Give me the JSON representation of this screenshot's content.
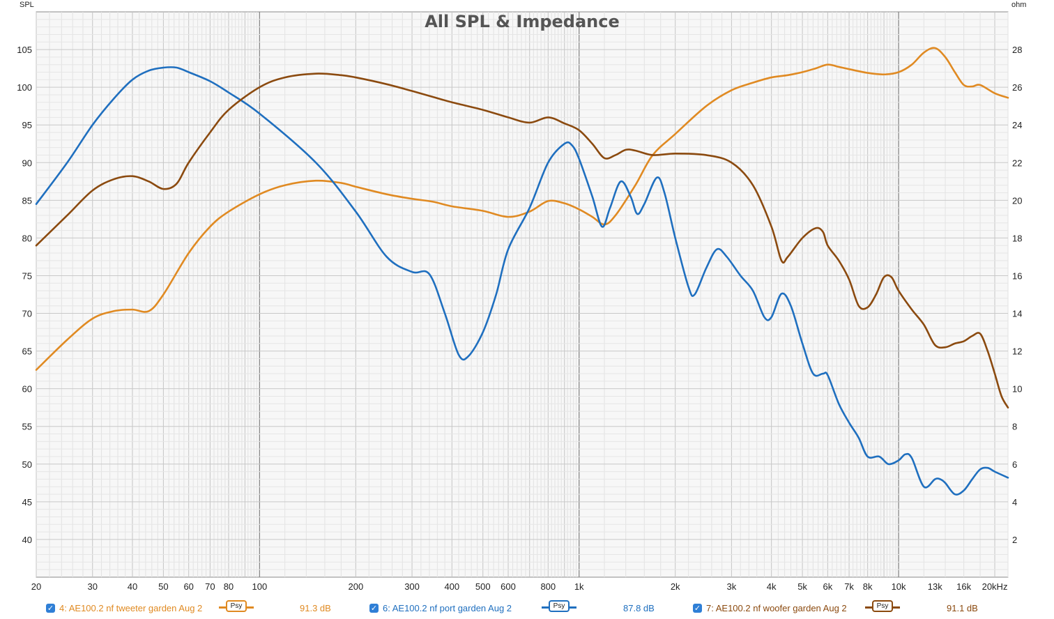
{
  "chart_data": {
    "type": "line",
    "title": "All SPL & Impedance",
    "ylabel": "SPL",
    "y2label": "ohm",
    "x_scale": "log",
    "xlim": [
      20,
      22000
    ],
    "ylim": [
      35,
      110
    ],
    "y2lim": [
      0,
      30
    ],
    "grid": true,
    "x_ticks": [
      {
        "value": 20,
        "label": "20"
      },
      {
        "value": 30,
        "label": "30"
      },
      {
        "value": 40,
        "label": "40"
      },
      {
        "value": 50,
        "label": "50"
      },
      {
        "value": 60,
        "label": "60"
      },
      {
        "value": 70,
        "label": "70"
      },
      {
        "value": 80,
        "label": "80"
      },
      {
        "value": 100,
        "label": "100"
      },
      {
        "value": 200,
        "label": "200"
      },
      {
        "value": 300,
        "label": "300"
      },
      {
        "value": 400,
        "label": "400"
      },
      {
        "value": 500,
        "label": "500"
      },
      {
        "value": 600,
        "label": "600"
      },
      {
        "value": 800,
        "label": "800"
      },
      {
        "value": 1000,
        "label": "1k"
      },
      {
        "value": 2000,
        "label": "2k"
      },
      {
        "value": 3000,
        "label": "3k"
      },
      {
        "value": 4000,
        "label": "4k"
      },
      {
        "value": 5000,
        "label": "5k"
      },
      {
        "value": 6000,
        "label": "6k"
      },
      {
        "value": 7000,
        "label": "7k"
      },
      {
        "value": 8000,
        "label": "8k"
      },
      {
        "value": 10000,
        "label": "10k"
      },
      {
        "value": 13000,
        "label": "13k"
      },
      {
        "value": 16000,
        "label": "16k"
      },
      {
        "value": 20000,
        "label": "20kHz"
      }
    ],
    "y_ticks": [
      40,
      45,
      50,
      55,
      60,
      65,
      70,
      75,
      80,
      85,
      90,
      95,
      100,
      105
    ],
    "y2_ticks": [
      2,
      4,
      6,
      8,
      10,
      12,
      14,
      16,
      18,
      20,
      22,
      24,
      26,
      28
    ],
    "series": [
      {
        "name": "4: AE100.2 nf tweeter garden Aug 2",
        "legend_value": "91.3 dB",
        "color": "#e08a22",
        "points": [
          [
            20,
            62.5
          ],
          [
            25,
            66.5
          ],
          [
            30,
            69.3
          ],
          [
            35,
            70.3
          ],
          [
            40,
            70.5
          ],
          [
            45,
            70.3
          ],
          [
            50,
            72.5
          ],
          [
            60,
            78
          ],
          [
            70,
            81.5
          ],
          [
            80,
            83.5
          ],
          [
            100,
            85.8
          ],
          [
            120,
            87
          ],
          [
            150,
            87.6
          ],
          [
            180,
            87.3
          ],
          [
            200,
            86.8
          ],
          [
            250,
            85.8
          ],
          [
            300,
            85.2
          ],
          [
            350,
            84.8
          ],
          [
            400,
            84.2
          ],
          [
            500,
            83.6
          ],
          [
            600,
            82.8
          ],
          [
            700,
            83.5
          ],
          [
            800,
            84.9
          ],
          [
            900,
            84.6
          ],
          [
            1000,
            83.8
          ],
          [
            1100,
            82.8
          ],
          [
            1200,
            81.8
          ],
          [
            1300,
            83
          ],
          [
            1500,
            87
          ],
          [
            1700,
            91
          ],
          [
            2000,
            93.8
          ],
          [
            2500,
            97.5
          ],
          [
            3000,
            99.6
          ],
          [
            3500,
            100.6
          ],
          [
            4000,
            101.3
          ],
          [
            4500,
            101.6
          ],
          [
            5000,
            102
          ],
          [
            5500,
            102.5
          ],
          [
            6000,
            103
          ],
          [
            6500,
            102.7
          ],
          [
            7000,
            102.4
          ],
          [
            8000,
            101.9
          ],
          [
            9000,
            101.7
          ],
          [
            10000,
            102
          ],
          [
            11000,
            103
          ],
          [
            12000,
            104.6
          ],
          [
            13000,
            105.2
          ],
          [
            14000,
            104
          ],
          [
            15000,
            102
          ],
          [
            16000,
            100.3
          ],
          [
            17000,
            100.1
          ],
          [
            18000,
            100.3
          ],
          [
            20000,
            99.2
          ],
          [
            22000,
            98.6
          ]
        ]
      },
      {
        "name": "6: AE100.2 nf port garden Aug 2",
        "legend_value": "87.8 dB",
        "color": "#1f6fbf",
        "points": [
          [
            20,
            84.5
          ],
          [
            25,
            90
          ],
          [
            30,
            95
          ],
          [
            35,
            98.5
          ],
          [
            40,
            101
          ],
          [
            45,
            102.2
          ],
          [
            50,
            102.6
          ],
          [
            55,
            102.6
          ],
          [
            60,
            102
          ],
          [
            70,
            100.8
          ],
          [
            80,
            99.3
          ],
          [
            100,
            96.5
          ],
          [
            150,
            90
          ],
          [
            200,
            83.5
          ],
          [
            250,
            77.5
          ],
          [
            300,
            75.5
          ],
          [
            340,
            75.2
          ],
          [
            380,
            70
          ],
          [
            420,
            64.5
          ],
          [
            450,
            64.3
          ],
          [
            500,
            67.5
          ],
          [
            550,
            72.5
          ],
          [
            600,
            78.5
          ],
          [
            700,
            84
          ],
          [
            800,
            90
          ],
          [
            900,
            92.5
          ],
          [
            950,
            92.3
          ],
          [
            1000,
            90.5
          ],
          [
            1100,
            85.5
          ],
          [
            1180,
            81.5
          ],
          [
            1250,
            84
          ],
          [
            1350,
            87.5
          ],
          [
            1450,
            85.5
          ],
          [
            1520,
            83.2
          ],
          [
            1600,
            84.5
          ],
          [
            1750,
            88
          ],
          [
            1850,
            86
          ],
          [
            2000,
            80
          ],
          [
            2200,
            73.5
          ],
          [
            2300,
            72.5
          ],
          [
            2500,
            76
          ],
          [
            2700,
            78.5
          ],
          [
            2900,
            77.5
          ],
          [
            3200,
            75
          ],
          [
            3500,
            73
          ],
          [
            3800,
            69.5
          ],
          [
            4000,
            69.5
          ],
          [
            4300,
            72.6
          ],
          [
            4600,
            71
          ],
          [
            5000,
            66
          ],
          [
            5400,
            62
          ],
          [
            5800,
            62
          ],
          [
            6000,
            61.8
          ],
          [
            6500,
            58
          ],
          [
            7000,
            55.5
          ],
          [
            7500,
            53.5
          ],
          [
            8000,
            51
          ],
          [
            8700,
            51
          ],
          [
            9300,
            50
          ],
          [
            10000,
            50.5
          ],
          [
            10500,
            51.3
          ],
          [
            11000,
            50.8
          ],
          [
            12000,
            47
          ],
          [
            13000,
            48
          ],
          [
            13500,
            48
          ],
          [
            14000,
            47.5
          ],
          [
            15000,
            46
          ],
          [
            16000,
            46.5
          ],
          [
            17000,
            48
          ],
          [
            18000,
            49.3
          ],
          [
            19000,
            49.5
          ],
          [
            20000,
            49
          ],
          [
            22000,
            48.2
          ]
        ]
      },
      {
        "name": "7: AE100.2 nf woofer garden Aug 2",
        "legend_value": "91.1 dB",
        "color": "#8b4a0f",
        "points": [
          [
            20,
            79
          ],
          [
            25,
            83
          ],
          [
            30,
            86.3
          ],
          [
            35,
            87.8
          ],
          [
            40,
            88.2
          ],
          [
            45,
            87.5
          ],
          [
            50,
            86.5
          ],
          [
            55,
            87.2
          ],
          [
            60,
            90
          ],
          [
            70,
            94
          ],
          [
            80,
            97
          ],
          [
            100,
            100
          ],
          [
            120,
            101.3
          ],
          [
            150,
            101.8
          ],
          [
            180,
            101.6
          ],
          [
            200,
            101.3
          ],
          [
            250,
            100.4
          ],
          [
            300,
            99.5
          ],
          [
            350,
            98.7
          ],
          [
            400,
            98
          ],
          [
            500,
            97
          ],
          [
            600,
            96
          ],
          [
            700,
            95.3
          ],
          [
            800,
            96
          ],
          [
            900,
            95.2
          ],
          [
            1000,
            94.3
          ],
          [
            1100,
            92.5
          ],
          [
            1200,
            90.6
          ],
          [
            1300,
            91
          ],
          [
            1400,
            91.7
          ],
          [
            1500,
            91.6
          ],
          [
            1700,
            91
          ],
          [
            2000,
            91.2
          ],
          [
            2500,
            91
          ],
          [
            3000,
            90
          ],
          [
            3500,
            87
          ],
          [
            4000,
            81.5
          ],
          [
            4300,
            77
          ],
          [
            4500,
            77.5
          ],
          [
            5000,
            80
          ],
          [
            5500,
            81.3
          ],
          [
            5800,
            80.8
          ],
          [
            6000,
            79
          ],
          [
            6500,
            77
          ],
          [
            7000,
            74.5
          ],
          [
            7500,
            71
          ],
          [
            8000,
            70.8
          ],
          [
            8500,
            72.5
          ],
          [
            9000,
            74.8
          ],
          [
            9500,
            74.8
          ],
          [
            10000,
            73
          ],
          [
            11000,
            70.5
          ],
          [
            12000,
            68.5
          ],
          [
            13000,
            65.8
          ],
          [
            14000,
            65.5
          ],
          [
            15000,
            66
          ],
          [
            16000,
            66.3
          ],
          [
            17000,
            67
          ],
          [
            18000,
            67.3
          ],
          [
            19000,
            65
          ],
          [
            20000,
            62
          ],
          [
            21000,
            59
          ],
          [
            22000,
            57.5
          ]
        ]
      }
    ]
  },
  "legend": {
    "psy_label": "Psy",
    "checkbox_glyph": "✓"
  }
}
